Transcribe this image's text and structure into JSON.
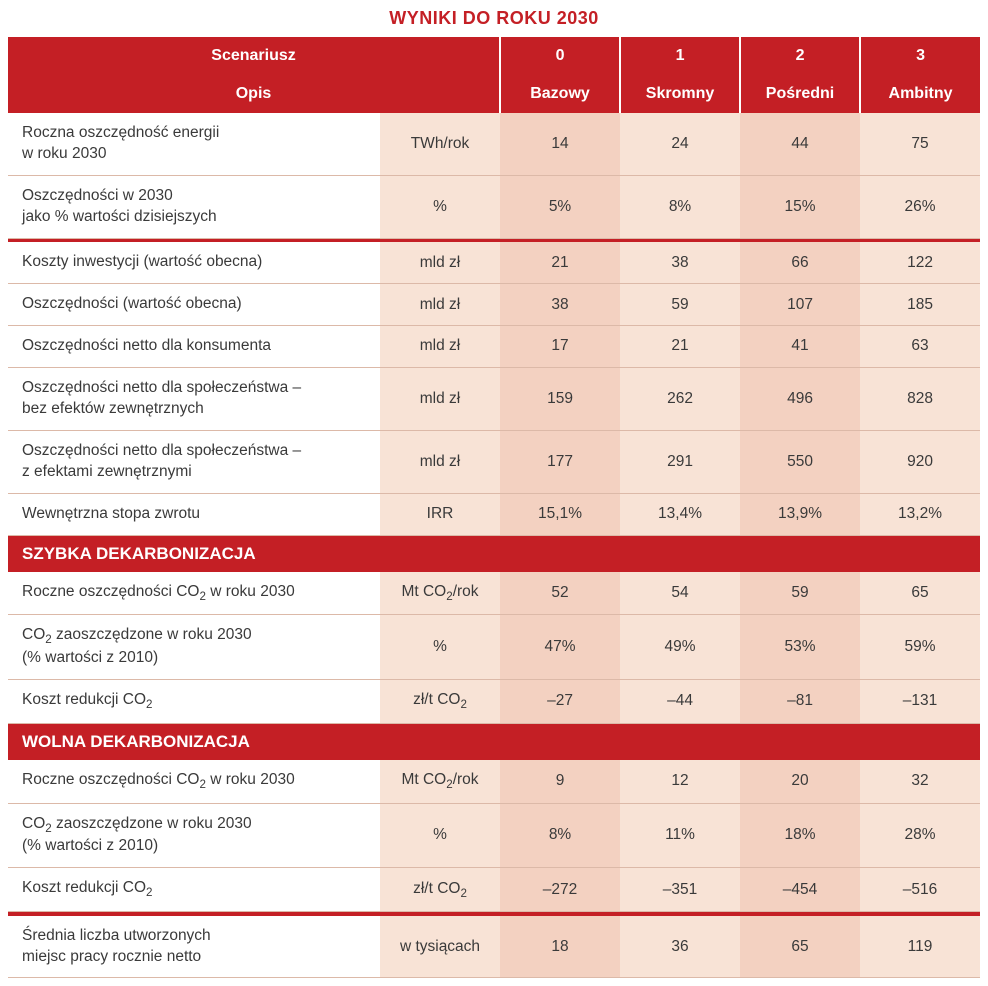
{
  "title": "WYNIKI DO ROKU 2030",
  "colors": {
    "brand_red": "#c41f25",
    "tint_light": "#f8e3d6",
    "tint_dark": "#f3d1c1",
    "row_border": "#dcb9a8",
    "text": "#3a3a3a",
    "white": "#ffffff"
  },
  "header": {
    "scenario_label": "Scenariusz",
    "opis_label": "Opis",
    "cols": [
      "0",
      "1",
      "2",
      "3"
    ],
    "names": [
      "Bazowy",
      "Skromny",
      "Pośredni",
      "Ambitny"
    ]
  },
  "groups": [
    {
      "kind": "rows",
      "rows": [
        {
          "label": "Roczna oszczędność energii\nw roku 2030",
          "unit": "TWh/rok",
          "v": [
            "14",
            "24",
            "44",
            "75"
          ]
        },
        {
          "label": "Oszczędności w 2030\njako % wartości dzisiejszych",
          "unit": "%",
          "v": [
            "5%",
            "8%",
            "15%",
            "26%"
          ]
        }
      ]
    },
    {
      "kind": "redsep"
    },
    {
      "kind": "rows",
      "rows": [
        {
          "label": "Koszty inwestycji (wartość obecna)",
          "unit": "mld zł",
          "v": [
            "21",
            "38",
            "66",
            "122"
          ]
        },
        {
          "label": "Oszczędności (wartość obecna)",
          "unit": "mld zł",
          "v": [
            "38",
            "59",
            "107",
            "185"
          ]
        },
        {
          "label": "Oszczędności netto dla konsumenta",
          "unit": "mld zł",
          "v": [
            "17",
            "21",
            "41",
            "63"
          ]
        },
        {
          "label": "Oszczędności netto dla społeczeństwa –\nbez efektów zewnętrznych",
          "unit": "mld zł",
          "v": [
            "159",
            "262",
            "496",
            "828"
          ]
        },
        {
          "label": "Oszczędności netto dla społeczeństwa –\nz efektami zewnętrznymi",
          "unit": "mld zł",
          "v": [
            "177",
            "291",
            "550",
            "920"
          ]
        },
        {
          "label": "Wewnętrzna stopa zwrotu",
          "unit": "IRR",
          "v": [
            "15,1%",
            "13,4%",
            "13,9%",
            "13,2%"
          ]
        }
      ]
    },
    {
      "kind": "section",
      "title": "SZYBKA DEKARBONIZACJA"
    },
    {
      "kind": "rows",
      "rows": [
        {
          "label": "Roczne oszczędności CO₂ w roku 2030",
          "unit": "Mt CO₂/rok",
          "v": [
            "52",
            "54",
            "59",
            "65"
          ]
        },
        {
          "label": "CO₂ zaoszczędzone w roku 2030\n(% wartości z 2010)",
          "unit": "%",
          "v": [
            "47%",
            "49%",
            "53%",
            "59%"
          ]
        },
        {
          "label": "Koszt redukcji CO₂",
          "unit": "zł/t CO₂",
          "v": [
            "–27",
            "–44",
            "–81",
            "–131"
          ]
        }
      ]
    },
    {
      "kind": "section",
      "title": "WOLNA DEKARBONIZACJA"
    },
    {
      "kind": "rows",
      "rows": [
        {
          "label": "Roczne oszczędności CO₂ w roku 2030",
          "unit": "Mt CO₂/rok",
          "v": [
            "9",
            "12",
            "20",
            "32"
          ]
        },
        {
          "label": "CO₂ zaoszczędzone w roku 2030\n(% wartości z 2010)",
          "unit": "%",
          "v": [
            "8%",
            "11%",
            "18%",
            "28%"
          ]
        },
        {
          "label": "Koszt redukcji CO₂",
          "unit": "zł/t CO₂",
          "v": [
            "–272",
            "–351",
            "–454",
            "–516"
          ]
        }
      ]
    },
    {
      "kind": "redsep"
    },
    {
      "kind": "rows",
      "rows": [
        {
          "label": "Średnia liczba utworzonych\nmiejsc pracy rocznie netto",
          "unit": "w tysiącach",
          "v": [
            "18",
            "36",
            "65",
            "119"
          ]
        }
      ]
    }
  ]
}
